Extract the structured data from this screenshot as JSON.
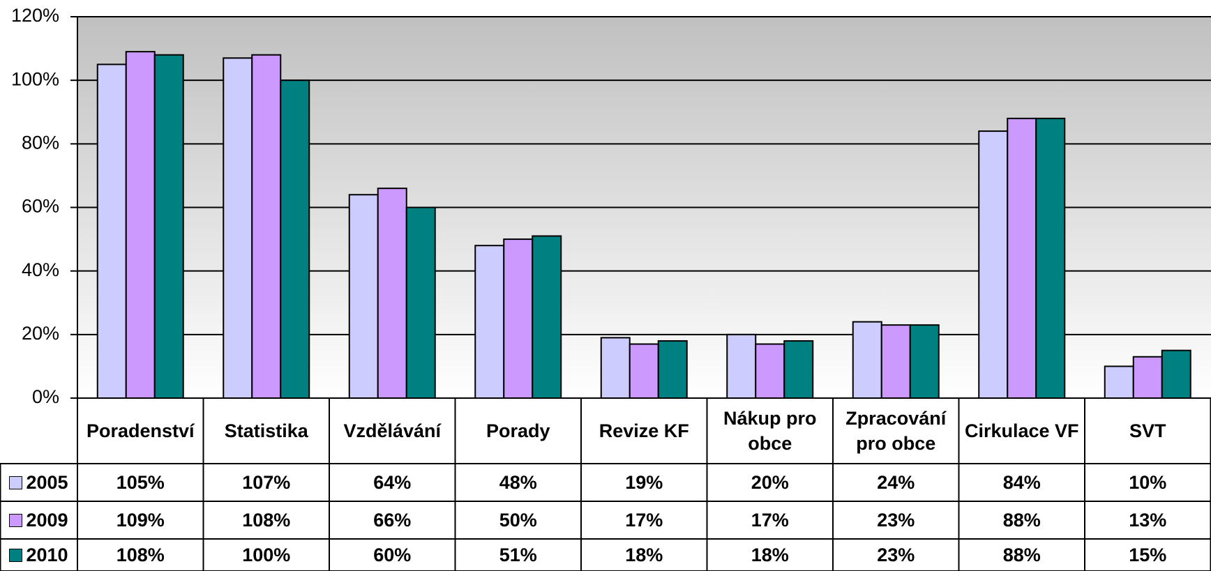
{
  "chart_data": {
    "type": "bar",
    "categories": [
      "Poradenství",
      "Statistika",
      "Vzdělávání",
      "Porady",
      "Revize KF",
      "Nákup pro obce",
      "Zpracování pro obce",
      "Cirkulace VF",
      "SVT"
    ],
    "series": [
      {
        "name": "2005",
        "color": "#ccccff",
        "values": [
          105,
          107,
          64,
          48,
          19,
          20,
          24,
          84,
          10
        ],
        "value_labels": [
          "105%",
          "107%",
          "64%",
          "48%",
          "19%",
          "20%",
          "24%",
          "84%",
          "10%"
        ]
      },
      {
        "name": "2009",
        "color": "#cc99ff",
        "values": [
          109,
          108,
          66,
          50,
          17,
          17,
          23,
          88,
          13
        ],
        "value_labels": [
          "109%",
          "108%",
          "66%",
          "50%",
          "17%",
          "17%",
          "23%",
          "88%",
          "13%"
        ]
      },
      {
        "name": "2010",
        "color": "#008080",
        "values": [
          108,
          100,
          60,
          51,
          18,
          18,
          23,
          88,
          15
        ],
        "value_labels": [
          "108%",
          "100%",
          "60%",
          "51%",
          "18%",
          "18%",
          "23%",
          "88%",
          "15%"
        ]
      }
    ],
    "ylim": [
      0,
      120
    ],
    "yticks": [
      {
        "value": 0,
        "label": "0%"
      },
      {
        "value": 20,
        "label": "20%"
      },
      {
        "value": 40,
        "label": "40%"
      },
      {
        "value": 60,
        "label": "60%"
      },
      {
        "value": 80,
        "label": "80%"
      },
      {
        "value": 100,
        "label": "100%"
      },
      {
        "value": 120,
        "label": "120%"
      }
    ],
    "grid": true
  }
}
